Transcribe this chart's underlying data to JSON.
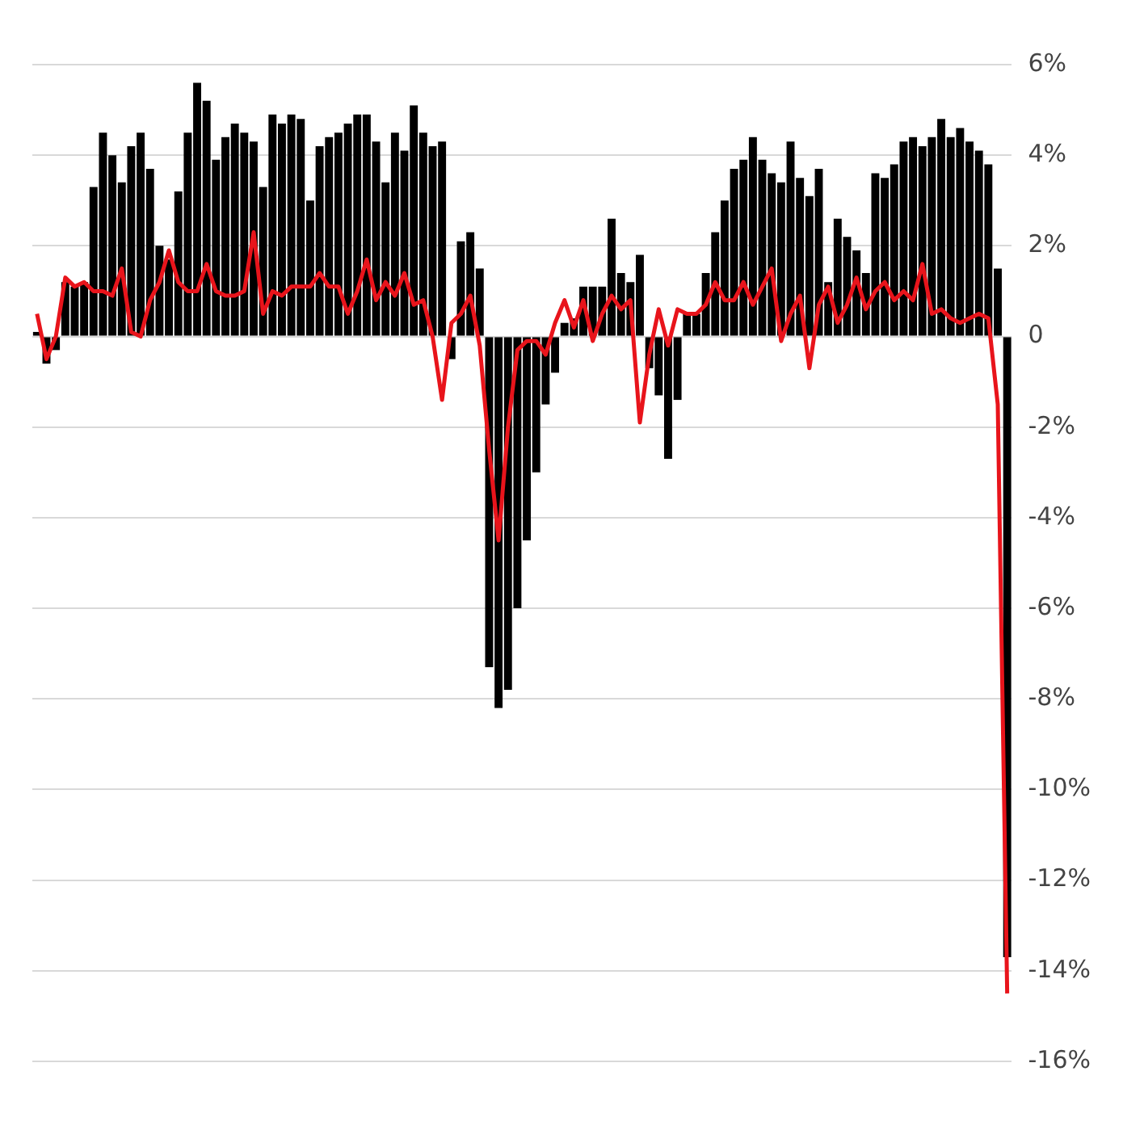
{
  "chart_data": {
    "type": "bar",
    "categories": [
      null,
      null,
      null,
      null,
      null,
      null,
      null,
      null,
      null,
      null,
      null,
      null,
      null,
      null,
      null,
      null,
      null,
      null,
      null,
      null,
      null,
      null,
      null,
      null,
      null,
      null,
      null,
      null,
      null,
      null,
      null,
      null,
      null,
      null,
      null,
      null,
      null,
      null,
      null,
      null,
      null,
      null,
      null,
      null,
      null,
      null,
      null,
      null,
      null,
      null,
      null,
      null,
      null,
      null,
      null,
      null,
      null,
      null,
      null,
      null,
      null,
      null,
      null,
      null,
      null,
      null,
      null,
      null,
      null,
      null,
      null,
      null,
      null,
      null,
      null,
      null,
      null,
      null,
      null,
      null,
      null,
      null,
      null,
      null,
      null,
      null,
      null,
      null,
      null,
      null,
      null,
      null,
      null,
      null,
      null,
      null,
      null,
      null,
      null,
      null,
      null,
      null,
      null,
      null
    ],
    "series": [
      {
        "color": "#000000",
        "values": [
          0.1,
          -0.6,
          -0.3,
          1.2,
          1.1,
          1.2,
          3.3,
          4.5,
          4.0,
          3.4,
          4.2,
          4.5,
          3.7,
          2.0,
          1.7,
          3.2,
          4.5,
          5.6,
          5.2,
          3.9,
          4.4,
          4.7,
          4.5,
          4.3,
          3.3,
          4.9,
          4.7,
          4.9,
          4.8,
          3.0,
          4.2,
          4.4,
          4.5,
          4.7,
          4.9,
          4.9,
          4.3,
          3.4,
          4.5,
          4.1,
          5.1,
          4.5,
          4.2,
          4.3,
          -0.5,
          2.1,
          2.3,
          1.5,
          -7.3,
          -8.2,
          -7.8,
          -6.0,
          -4.5,
          -3.0,
          -1.5,
          -0.8,
          0.3,
          0.4,
          1.1,
          1.1,
          1.1,
          2.6,
          1.4,
          1.2,
          1.8,
          -0.7,
          -1.3,
          -2.7,
          -1.4,
          0.5,
          0.5,
          1.4,
          2.3,
          3.0,
          3.7,
          3.9,
          4.4,
          3.9,
          3.6,
          3.4,
          4.3,
          3.5,
          3.1,
          3.7,
          1.2,
          2.6,
          2.2,
          1.9,
          1.4,
          3.6,
          3.5,
          3.8,
          4.3,
          4.4,
          4.2,
          4.4,
          4.8,
          4.4,
          4.6,
          4.3,
          4.1,
          3.8,
          1.5,
          -13.7
        ]
      },
      {
        "type": "line",
        "color": "#e8141b",
        "values": [
          0.5,
          -0.5,
          0.0,
          1.3,
          1.1,
          1.2,
          1.0,
          1.0,
          0.9,
          1.5,
          0.1,
          0.0,
          0.8,
          1.2,
          1.9,
          1.2,
          1.0,
          1.0,
          1.6,
          1.0,
          0.9,
          0.9,
          1.0,
          2.3,
          0.5,
          1.0,
          0.9,
          1.1,
          1.1,
          1.1,
          1.4,
          1.1,
          1.1,
          0.5,
          1.0,
          1.7,
          0.8,
          1.2,
          0.9,
          1.4,
          0.7,
          0.8,
          0.0,
          -1.4,
          0.3,
          0.5,
          0.9,
          -0.2,
          -2.5,
          -4.5,
          -2.0,
          -0.3,
          -0.1,
          -0.1,
          -0.4,
          0.3,
          0.8,
          0.2,
          0.8,
          -0.1,
          0.5,
          0.9,
          0.6,
          0.8,
          -1.9,
          -0.4,
          0.6,
          -0.2,
          0.6,
          0.5,
          0.5,
          0.7,
          1.2,
          0.8,
          0.8,
          1.2,
          0.7,
          1.1,
          1.5,
          -0.1,
          0.5,
          0.9,
          -0.7,
          0.7,
          1.1,
          0.3,
          0.7,
          1.3,
          0.6,
          1.0,
          1.2,
          0.8,
          1.0,
          0.8,
          1.6,
          0.5,
          0.6,
          0.4,
          0.3,
          0.4,
          0.5,
          0.4,
          -1.5,
          -14.5
        ]
      }
    ],
    "ylim": [
      -16,
      6
    ],
    "yticks": [
      {
        "value": 6,
        "label": "6%"
      },
      {
        "value": 4,
        "label": "4%"
      },
      {
        "value": 2,
        "label": "2%"
      },
      0,
      {
        "value": -2,
        "label": "-2%"
      },
      {
        "value": -4,
        "label": "-4%"
      },
      {
        "value": -6,
        "label": "-6%"
      },
      {
        "value": -8,
        "label": "-8%"
      },
      {
        "value": -10,
        "label": "-10%"
      },
      {
        "value": -12,
        "label": "-12%"
      },
      {
        "value": -14,
        "label": "-14%"
      },
      {
        "value": -16,
        "label": "-16%"
      }
    ],
    "grid": "y",
    "legend": false,
    "tick_labels": "y",
    "marker": "none",
    "line_style": "solid"
  }
}
